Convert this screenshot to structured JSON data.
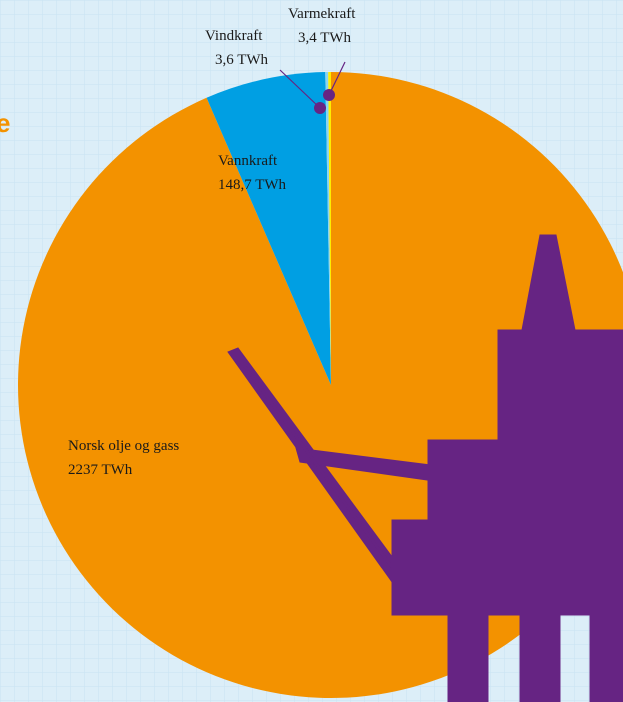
{
  "chart_data": {
    "type": "pie",
    "title": "e",
    "categories": [
      "Norsk olje og gass",
      "Vannkraft",
      "Vindkraft",
      "Varmekraft"
    ],
    "values": [
      2237,
      148.7,
      3.6,
      3.4
    ],
    "value_labels": [
      "2237 TWh",
      "148,7 TWh",
      "3,6 TWh",
      "3,4 TWh"
    ],
    "colors": [
      "#f39200",
      "#009fe3",
      "#8ad4f2",
      "#ffed00"
    ],
    "annotation_color": "#662483"
  }
}
